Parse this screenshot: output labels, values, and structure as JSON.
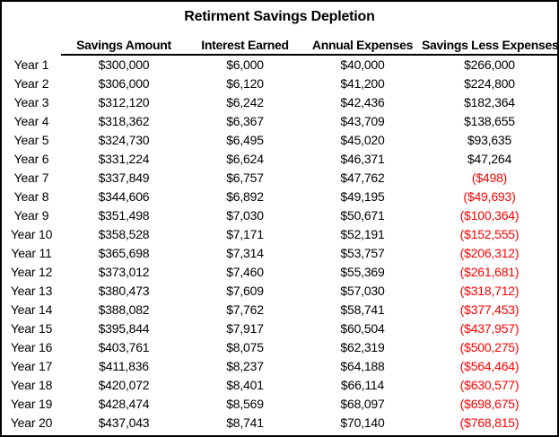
{
  "title": "Retirment Savings Depletion",
  "colors": {
    "background": "#FFFFFF",
    "border": "#000000",
    "text": "#000000",
    "negative_value": "#FF0000"
  },
  "table": {
    "headers": {
      "year": "",
      "savings": "Savings Amount",
      "interest": "Interest Earned",
      "expenses": "Annual Expenses",
      "net": "Savings Less Expenses"
    },
    "rows": [
      {
        "year": "Year 1",
        "savings": "$300,000",
        "interest": "$6,000",
        "expenses": "$40,000",
        "net": "$266,000",
        "negative": false
      },
      {
        "year": "Year 2",
        "savings": "$306,000",
        "interest": "$6,120",
        "expenses": "$41,200",
        "net": "$224,800",
        "negative": false
      },
      {
        "year": "Year 3",
        "savings": "$312,120",
        "interest": "$6,242",
        "expenses": "$42,436",
        "net": "$182,364",
        "negative": false
      },
      {
        "year": "Year 4",
        "savings": "$318,362",
        "interest": "$6,367",
        "expenses": "$43,709",
        "net": "$138,655",
        "negative": false
      },
      {
        "year": "Year 5",
        "savings": "$324,730",
        "interest": "$6,495",
        "expenses": "$45,020",
        "net": "$93,635",
        "negative": false
      },
      {
        "year": "Year 6",
        "savings": "$331,224",
        "interest": "$6,624",
        "expenses": "$46,371",
        "net": "$47,264",
        "negative": false
      },
      {
        "year": "Year 7",
        "savings": "$337,849",
        "interest": "$6,757",
        "expenses": "$47,762",
        "net": "($498)",
        "negative": true
      },
      {
        "year": "Year 8",
        "savings": "$344,606",
        "interest": "$6,892",
        "expenses": "$49,195",
        "net": "($49,693)",
        "negative": true
      },
      {
        "year": "Year 9",
        "savings": "$351,498",
        "interest": "$7,030",
        "expenses": "$50,671",
        "net": "($100,364)",
        "negative": true
      },
      {
        "year": "Year 10",
        "savings": "$358,528",
        "interest": "$7,171",
        "expenses": "$52,191",
        "net": "($152,555)",
        "negative": true
      },
      {
        "year": "Year 11",
        "savings": "$365,698",
        "interest": "$7,314",
        "expenses": "$53,757",
        "net": "($206,312)",
        "negative": true
      },
      {
        "year": "Year 12",
        "savings": "$373,012",
        "interest": "$7,460",
        "expenses": "$55,369",
        "net": "($261,681)",
        "negative": true
      },
      {
        "year": "Year 13",
        "savings": "$380,473",
        "interest": "$7,609",
        "expenses": "$57,030",
        "net": "($318,712)",
        "negative": true
      },
      {
        "year": "Year 14",
        "savings": "$388,082",
        "interest": "$7,762",
        "expenses": "$58,741",
        "net": "($377,453)",
        "negative": true
      },
      {
        "year": "Year 15",
        "savings": "$395,844",
        "interest": "$7,917",
        "expenses": "$60,504",
        "net": "($437,957)",
        "negative": true
      },
      {
        "year": "Year 16",
        "savings": "$403,761",
        "interest": "$8,075",
        "expenses": "$62,319",
        "net": "($500,275)",
        "negative": true
      },
      {
        "year": "Year 17",
        "savings": "$411,836",
        "interest": "$8,237",
        "expenses": "$64,188",
        "net": "($564,464)",
        "negative": true
      },
      {
        "year": "Year 18",
        "savings": "$420,072",
        "interest": "$8,401",
        "expenses": "$66,114",
        "net": "($630,577)",
        "negative": true
      },
      {
        "year": "Year 19",
        "savings": "$428,474",
        "interest": "$8,569",
        "expenses": "$68,097",
        "net": "($698,675)",
        "negative": true
      },
      {
        "year": "Year 20",
        "savings": "$437,043",
        "interest": "$8,741",
        "expenses": "$70,140",
        "net": "($768,815)",
        "negative": true
      }
    ]
  }
}
